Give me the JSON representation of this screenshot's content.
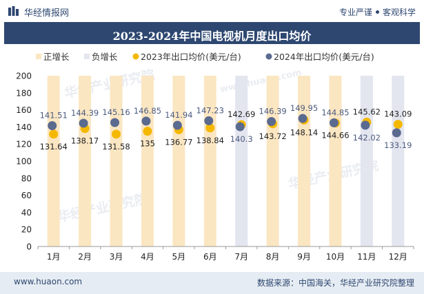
{
  "header": {
    "logo_text": "华经情报网",
    "slogan_left": "专业严谨",
    "slogan_right": "客观科学"
  },
  "title": "2023-2024年中国电视机月度出口均价",
  "watermark_text": "华经产业研究院",
  "watermark_url": "www.huaon.com",
  "footer": {
    "website": "www.huaon.com",
    "source": "数据来源：中国海关，华经产业研究院整理"
  },
  "colors": {
    "brand": "#2d4770",
    "positive": "#fbe6c2",
    "negative": "#e3e5ef",
    "series_2023": "#f5b800",
    "series_2024": "#5b6a8f"
  },
  "chart_data": {
    "type": "bar",
    "categories": [
      "1月",
      "2月",
      "3月",
      "4月",
      "5月",
      "6月",
      "7月",
      "8月",
      "9月",
      "10月",
      "11月",
      "12月"
    ],
    "ylim": [
      0,
      200
    ],
    "yticks": [
      0,
      20,
      40,
      60,
      80,
      100,
      120,
      140,
      160,
      180,
      200
    ],
    "legend": [
      "正增长",
      "负增长",
      "2023年出口均价(美元/台)",
      "2024年出口均价(美元/台)"
    ],
    "legend_position": "top",
    "series": [
      {
        "name": "2023年出口均价(美元/台)",
        "values": [
          131.64,
          138.17,
          131.58,
          135,
          136.77,
          138.84,
          142.69,
          143.72,
          148.14,
          144.66,
          145.62,
          143.09
        ]
      },
      {
        "name": "2024年出口均价(美元/台)",
        "values": [
          141.51,
          144.39,
          145.16,
          146.85,
          141.94,
          147.23,
          140.3,
          146.39,
          149.95,
          144.85,
          142.02,
          133.19
        ]
      }
    ],
    "bars": {
      "direction": [
        "正增长",
        "正增长",
        "正增长",
        "正增长",
        "正增长",
        "正增长",
        "负增长",
        "正增长",
        "正增长",
        "正增长",
        "负增长",
        "负增长"
      ]
    }
  }
}
